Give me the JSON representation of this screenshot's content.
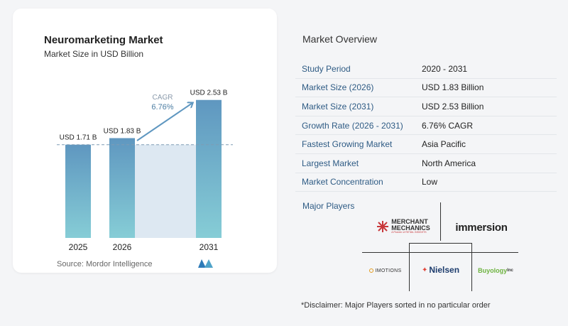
{
  "chart": {
    "title": "Neuromarketing Market",
    "subtitle": "Market Size in USD Billion",
    "source": "Source:  Mordor Intelligence",
    "cagr_label": "CAGR",
    "cagr_value": "6.76%"
  },
  "chart_data": {
    "type": "bar",
    "title": "Neuromarketing Market",
    "subtitle": "Market Size in USD Billion",
    "categories": [
      "2025",
      "2026",
      "2031"
    ],
    "values": [
      1.71,
      1.83,
      2.53
    ],
    "data_labels": [
      "USD 1.71 B",
      "USD 1.83 B",
      "USD 2.53 B"
    ],
    "ylim": [
      0,
      2.8
    ],
    "grid": false,
    "annotation": "CAGR 6.76%",
    "colors": {
      "bar_top": "#5f97c0",
      "bar_bottom": "#86cdd6",
      "band": "#dde8f2",
      "reference_line": "#7e9bb3"
    }
  },
  "overview": {
    "title": "Market Overview",
    "rows": [
      {
        "label": "Study Period",
        "value": "2020 - 2031"
      },
      {
        "label": "Market Size (2026)",
        "value": "USD 1.83 Billion"
      },
      {
        "label": "Market Size (2031)",
        "value": "USD 2.53 Billion"
      },
      {
        "label": "Growth Rate (2026 - 2031)",
        "value": "6.76% CAGR"
      },
      {
        "label": "Fastest Growing Market",
        "value": "Asia Pacific"
      },
      {
        "label": "Largest Market",
        "value": "North America"
      },
      {
        "label": "Market Concentration",
        "value": "Low"
      }
    ]
  },
  "players": {
    "title": "Major Players",
    "logos": {
      "merchant_mechanics": {
        "line1": "MERCHANT",
        "line2": "MECHANICS",
        "tagline": "A Pioneer of RETAIL INSIGHTS"
      },
      "immersion": {
        "text": "immersion"
      },
      "imotions": {
        "text": "IMOTIONS"
      },
      "nielsen": {
        "text": "Nielsen"
      },
      "buyology": {
        "text": "Buyology",
        "suffix": "Inc"
      }
    },
    "disclaimer": "*Disclaimer: Major Players sorted in no particular order"
  },
  "colors": {
    "accent": "#2e5b84",
    "brand_red": "#c8373a"
  }
}
